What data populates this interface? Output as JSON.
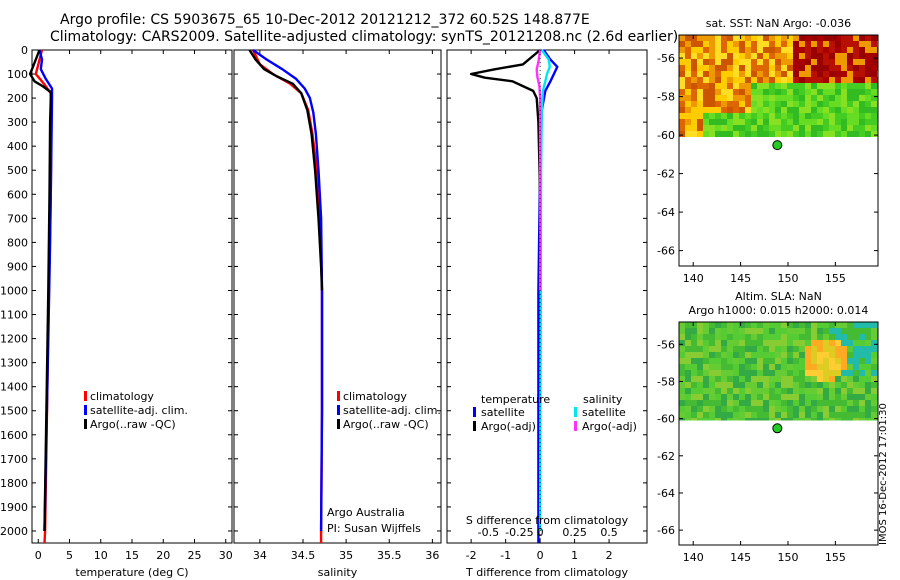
{
  "title": {
    "line1": "Argo profile: CS 5903675_65 10-Dec-2012 20121212_372 60.52S 148.877E",
    "line2": "Climatology: CARS2009. Satellite-adjusted climatology: synTS_20121208.nc (2.6d earlier)"
  },
  "side_label": "IMOS 16-Dec-2012 17:01:30",
  "colors": {
    "climatology": "#ff0000",
    "satellite": "#0000ff",
    "argo": "#000000",
    "sal_satellite": "#00e5ee",
    "sal_argo": "#ff33ff"
  },
  "chart_data": [
    {
      "name": "temperature-profile",
      "type": "line",
      "xlabel": "temperature (deg C)",
      "xlim": [
        -1,
        31
      ],
      "ylim": [
        2050,
        0
      ],
      "xticks": [
        0,
        5,
        10,
        15,
        20,
        25,
        30
      ],
      "yticks": [
        0,
        100,
        200,
        300,
        400,
        500,
        600,
        700,
        800,
        900,
        1000,
        1100,
        1200,
        1300,
        1400,
        1500,
        1600,
        1700,
        1800,
        1900,
        2000
      ],
      "legend": [
        "climatology",
        "satellite-adj. clim.",
        "Argo(..raw -QC)"
      ],
      "legend_position": "lower-right",
      "series": [
        {
          "name": "climatology",
          "color": "climatology",
          "depth": [
            0,
            60,
            100,
            140,
            180,
            300,
            600,
            1000,
            1500,
            2000,
            2050
          ],
          "values": [
            0.6,
            0.0,
            -0.4,
            0.9,
            2.0,
            2.1,
            2.0,
            1.7,
            1.4,
            1.1,
            1.0
          ]
        },
        {
          "name": "satellite-adj. clim.",
          "color": "satellite",
          "depth": [
            0,
            40,
            80,
            120,
            160,
            200,
            400,
            800,
            1200,
            1600,
            2000
          ],
          "values": [
            0.2,
            0.6,
            0.4,
            1.2,
            2.2,
            2.2,
            2.1,
            1.9,
            1.6,
            1.3,
            1.0
          ]
        },
        {
          "name": "Argo(..raw -QC)",
          "color": "argo",
          "depth": [
            0,
            60,
            100,
            130,
            150,
            175,
            200,
            300,
            600,
            1000,
            1500,
            2000
          ],
          "values": [
            0.2,
            -0.7,
            -1.3,
            -0.6,
            0.7,
            2.0,
            2.0,
            1.9,
            1.8,
            1.6,
            1.3,
            1.0
          ]
        }
      ]
    },
    {
      "name": "salinity-profile",
      "type": "line",
      "xlabel": "salinity",
      "xlim": [
        33.7,
        36.1
      ],
      "ylim": [
        2050,
        0
      ],
      "xticks": [
        34,
        34.5,
        35,
        35.5,
        36
      ],
      "xticklabels": [
        "34",
        "34.5",
        "35",
        "35.5",
        "36"
      ],
      "legend": [
        "climatology",
        "satellite-adj. clim.",
        "Argo(..raw -QC)"
      ],
      "legend_position": "lower-right",
      "annotation": [
        "Argo Australia",
        "PI: Susan Wijffels"
      ],
      "series": [
        {
          "name": "climatology",
          "color": "climatology",
          "depth": [
            0,
            60,
            100,
            140,
            180,
            250,
            350,
            500,
            700,
            1000,
            1500,
            2000,
            2050
          ],
          "values": [
            33.92,
            34.0,
            34.15,
            34.35,
            34.48,
            34.56,
            34.61,
            34.66,
            34.7,
            34.72,
            34.72,
            34.71,
            34.71
          ]
        },
        {
          "name": "satellite-adj. clim.",
          "color": "satellite",
          "depth": [
            0,
            40,
            80,
            120,
            160,
            200,
            260,
            350,
            500,
            700,
            1000,
            1500,
            2000
          ],
          "values": [
            33.92,
            34.08,
            34.26,
            34.42,
            34.52,
            34.58,
            34.62,
            34.65,
            34.68,
            34.71,
            34.72,
            34.72,
            34.71
          ]
        },
        {
          "name": "Argo(..raw -QC)",
          "color": "argo",
          "depth": [
            0,
            40,
            80,
            110,
            140,
            180,
            250,
            350,
            500,
            700,
            900,
            1000
          ],
          "values": [
            33.88,
            33.95,
            34.05,
            34.2,
            34.38,
            34.48,
            34.55,
            34.6,
            34.64,
            34.68,
            34.71,
            34.72
          ]
        }
      ]
    },
    {
      "name": "difference-profile",
      "type": "line",
      "xlabel": "T difference from climatology",
      "xlabel_top": "S difference from climatology",
      "xlim": [
        -2.7,
        3.1
      ],
      "ylim": [
        2050,
        0
      ],
      "xticks": [
        -2,
        -1,
        0,
        1,
        2
      ],
      "s_ticklabels": [
        "-0.5",
        "-0.25",
        "0",
        "0.25",
        "0.5"
      ],
      "legend_titles": [
        "temperature",
        "salinity"
      ],
      "legend": [
        "satellite",
        "Argo(-adj)",
        "satellite",
        "Argo(-adj)"
      ],
      "legend_position": "lower-center",
      "series": [
        {
          "name": "temperature satellite",
          "color": "satellite",
          "depth": [
            0,
            40,
            70,
            100,
            130,
            170,
            250,
            500,
            1000,
            1500,
            2000,
            2050
          ],
          "values": [
            0.1,
            0.3,
            0.5,
            0.4,
            0.3,
            0.15,
            0.05,
            0.0,
            -0.05,
            -0.05,
            -0.05,
            -0.05
          ]
        },
        {
          "name": "temperature Argo(-adj)",
          "color": "argo",
          "depth": [
            0,
            60,
            80,
            100,
            115,
            130,
            150,
            170,
            200,
            300,
            600,
            1000
          ],
          "values": [
            0.0,
            -0.5,
            -1.3,
            -2.0,
            -1.6,
            -0.8,
            -0.5,
            -0.2,
            -0.1,
            -0.05,
            0.0,
            0.0
          ]
        },
        {
          "name": "salinity satellite",
          "color": "sal_satellite",
          "depth": [
            0,
            40,
            70,
            100,
            130,
            170,
            250,
            500,
            1000,
            1500,
            2000
          ],
          "values": [
            0.05,
            0.25,
            0.28,
            0.2,
            0.15,
            0.08,
            0.05,
            0.03,
            0.02,
            0.01,
            0.0
          ]
        },
        {
          "name": "salinity Argo(-adj)",
          "color": "sal_argo",
          "depth": [
            0,
            50,
            80,
            110,
            150,
            200,
            300,
            500,
            800,
            1000
          ],
          "values": [
            0.0,
            -0.05,
            -0.1,
            -0.08,
            -0.02,
            0.0,
            0.0,
            0.0,
            0.01,
            0.0
          ]
        }
      ]
    },
    {
      "name": "sst-map",
      "type": "heatmap",
      "title": "sat. SST: NaN Argo: -0.036",
      "xlim": [
        138.5,
        159.5
      ],
      "ylim": [
        -66.8,
        -54.8
      ],
      "xticks": [
        140,
        145,
        150,
        155
      ],
      "yticks": [
        -56,
        -58,
        -60,
        -62,
        -64,
        -66
      ],
      "data_lat_range": [
        -54.8,
        -60.1
      ],
      "argo_location": {
        "lon": 148.877,
        "lat": -60.52
      }
    },
    {
      "name": "sla-map",
      "type": "heatmap",
      "title": [
        "Altim. SLA: NaN",
        "Argo h1000: 0.015 h2000: 0.014"
      ],
      "xlim": [
        138.5,
        159.5
      ],
      "ylim": [
        -66.8,
        -54.8
      ],
      "xticks": [
        140,
        145,
        150,
        155
      ],
      "yticks": [
        -56,
        -58,
        -60,
        -62,
        -64,
        -66
      ],
      "data_lat_range": [
        -54.8,
        -60.1
      ],
      "argo_location": {
        "lon": 148.877,
        "lat": -60.52
      }
    }
  ]
}
